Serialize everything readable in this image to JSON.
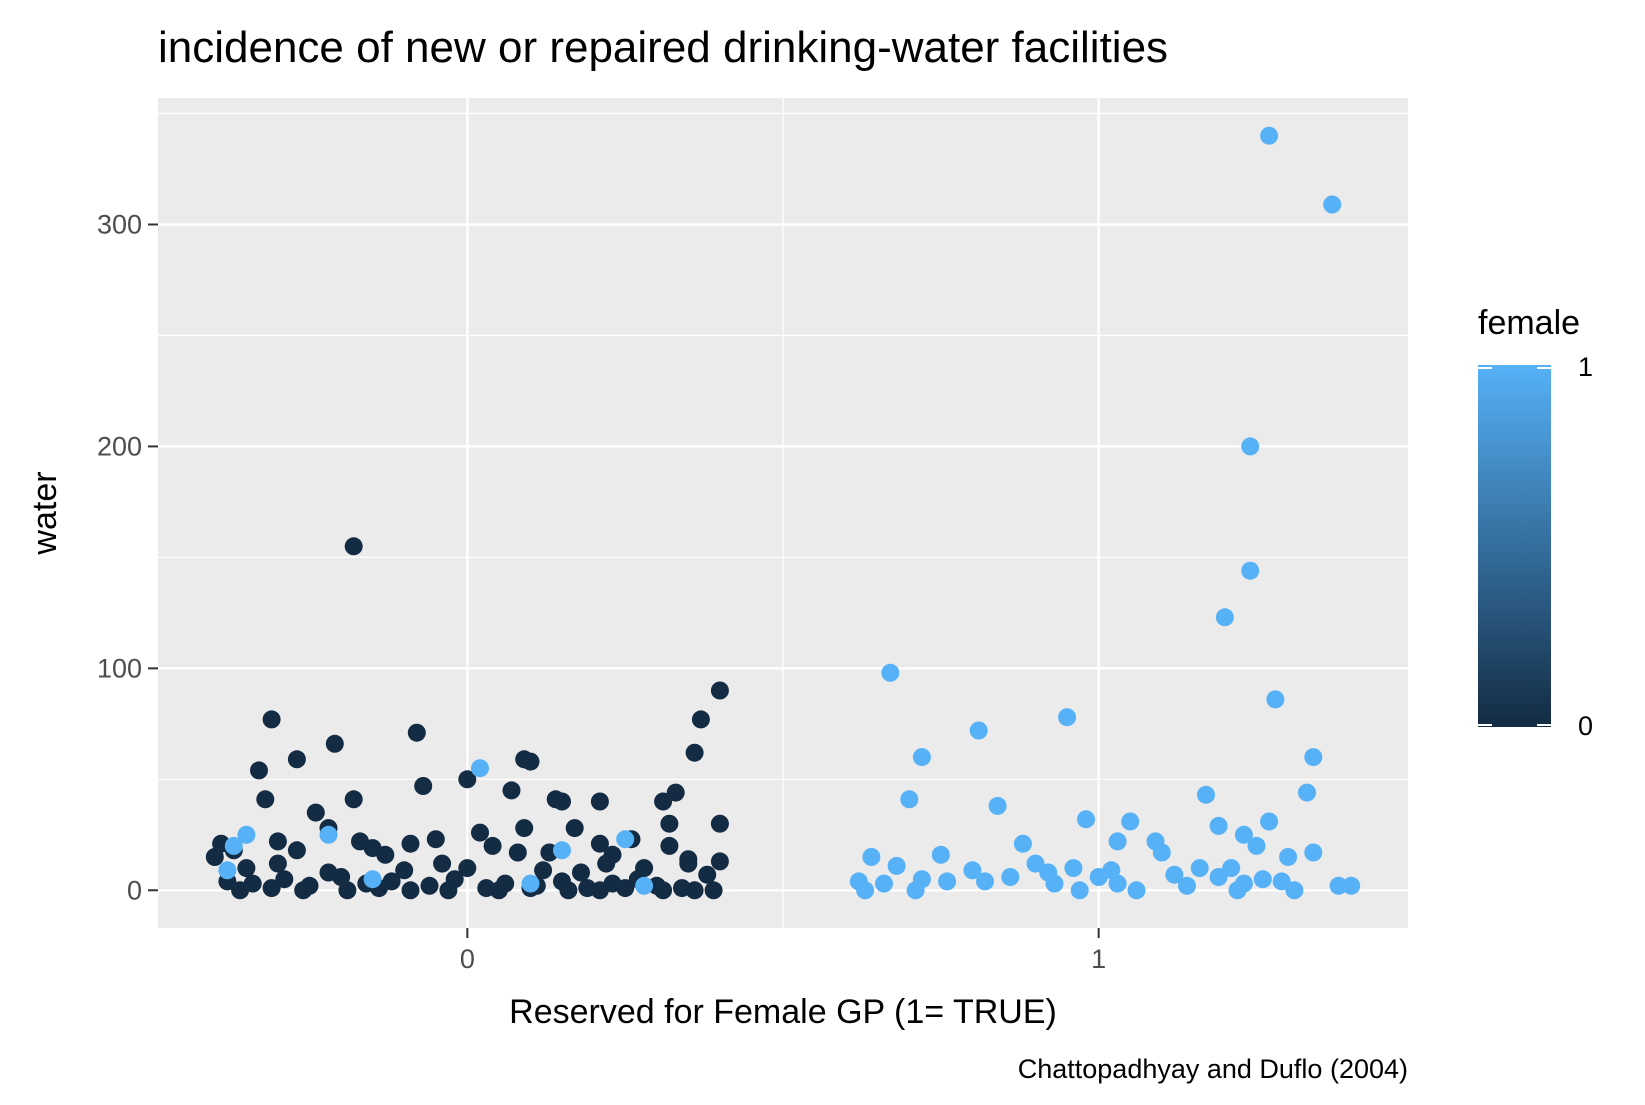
{
  "chart_data": {
    "type": "scatter",
    "title": "incidence of new or repaired drinking-water facilities",
    "xlabel": "Reserved for Female GP (1= TRUE)",
    "ylabel": "water",
    "caption": "Chattopadhyay and Duflo (2004)",
    "x_ticks": [
      "0",
      "1"
    ],
    "y_ticks": [
      "0",
      "100",
      "200",
      "300"
    ],
    "xlim": [
      -0.49,
      1.49
    ],
    "ylim": [
      -17,
      357
    ],
    "grid": true,
    "jitter_width": 0.4,
    "legend": {
      "title": "female",
      "labels": [
        "1",
        "0"
      ],
      "placement": "right",
      "color_low": "#132B43",
      "color_high": "#56B1F7"
    },
    "colors": {
      "panel": "#EBEBEB",
      "grid": "#FFFFFF",
      "female_0": "#132B43",
      "female_1": "#56B1F7"
    },
    "series": [
      {
        "group": 0,
        "points": [
          [
            -0.18,
            155
          ],
          [
            0.4,
            90
          ],
          [
            -0.31,
            77
          ],
          [
            0.37,
            77
          ],
          [
            -0.08,
            71
          ],
          [
            -0.21,
            66
          ],
          [
            0.36,
            62
          ],
          [
            -0.27,
            59
          ],
          [
            0.09,
            59
          ],
          [
            0.1,
            58
          ],
          [
            -0.33,
            54
          ],
          [
            0.0,
            50
          ],
          [
            -0.07,
            47
          ],
          [
            0.07,
            45
          ],
          [
            0.33,
            44
          ],
          [
            -0.18,
            41
          ],
          [
            -0.32,
            41
          ],
          [
            0.14,
            41
          ],
          [
            0.31,
            40
          ],
          [
            0.21,
            40
          ],
          [
            0.15,
            40
          ],
          [
            -0.24,
            35
          ],
          [
            0.4,
            30
          ],
          [
            -0.22,
            28
          ],
          [
            0.32,
            30
          ],
          [
            0.17,
            28
          ],
          [
            0.02,
            26
          ],
          [
            0.09,
            28
          ],
          [
            -0.3,
            22
          ],
          [
            -0.17,
            22
          ],
          [
            -0.39,
            21
          ],
          [
            -0.09,
            21
          ],
          [
            -0.05,
            23
          ],
          [
            0.21,
            21
          ],
          [
            0.26,
            23
          ],
          [
            0.32,
            20
          ],
          [
            -0.15,
            19
          ],
          [
            -0.37,
            18
          ],
          [
            -0.27,
            18
          ],
          [
            0.04,
            20
          ],
          [
            0.08,
            17
          ],
          [
            -0.4,
            15
          ],
          [
            -0.13,
            16
          ],
          [
            0.13,
            17
          ],
          [
            0.23,
            16
          ],
          [
            0.35,
            12
          ],
          [
            0.4,
            13
          ],
          [
            -0.35,
            10
          ],
          [
            -0.22,
            8
          ],
          [
            -0.1,
            9
          ],
          [
            0.0,
            10
          ],
          [
            0.12,
            9
          ],
          [
            0.18,
            8
          ],
          [
            0.28,
            10
          ],
          [
            0.38,
            7
          ],
          [
            -0.38,
            4
          ],
          [
            -0.34,
            3
          ],
          [
            -0.29,
            5
          ],
          [
            -0.25,
            2
          ],
          [
            -0.2,
            6
          ],
          [
            -0.16,
            3
          ],
          [
            -0.12,
            4
          ],
          [
            -0.06,
            2
          ],
          [
            -0.02,
            5
          ],
          [
            0.03,
            1
          ],
          [
            0.06,
            3
          ],
          [
            0.11,
            2
          ],
          [
            0.15,
            4
          ],
          [
            0.19,
            1
          ],
          [
            0.23,
            3
          ],
          [
            0.27,
            5
          ],
          [
            0.3,
            2
          ],
          [
            0.34,
            1
          ],
          [
            0.39,
            0
          ],
          [
            -0.36,
            0
          ],
          [
            -0.31,
            1
          ],
          [
            -0.26,
            0
          ],
          [
            -0.19,
            0
          ],
          [
            -0.14,
            1
          ],
          [
            -0.09,
            0
          ],
          [
            -0.03,
            0
          ],
          [
            0.05,
            0
          ],
          [
            0.1,
            1
          ],
          [
            0.16,
            0
          ],
          [
            0.21,
            0
          ],
          [
            0.25,
            1
          ],
          [
            0.31,
            0
          ],
          [
            0.36,
            0
          ],
          [
            -0.04,
            12
          ],
          [
            0.22,
            12
          ],
          [
            -0.3,
            12
          ],
          [
            0.35,
            14
          ]
        ]
      },
      {
        "group": 1,
        "points": [
          [
            1.27,
            340
          ],
          [
            1.37,
            309
          ],
          [
            1.24,
            200
          ],
          [
            1.24,
            144
          ],
          [
            1.2,
            123
          ],
          [
            0.67,
            98
          ],
          [
            1.28,
            86
          ],
          [
            0.95,
            78
          ],
          [
            0.81,
            72
          ],
          [
            0.72,
            60
          ],
          [
            1.34,
            60
          ],
          [
            0.02,
            55
          ],
          [
            1.33,
            44
          ],
          [
            1.17,
            43
          ],
          [
            0.7,
            41
          ],
          [
            0.84,
            38
          ],
          [
            0.98,
            32
          ],
          [
            1.05,
            31
          ],
          [
            1.27,
            31
          ],
          [
            1.19,
            29
          ],
          [
            1.23,
            25
          ],
          [
            0.25,
            23
          ],
          [
            -0.35,
            25
          ],
          [
            -0.22,
            25
          ],
          [
            1.03,
            22
          ],
          [
            1.09,
            22
          ],
          [
            1.25,
            20
          ],
          [
            0.88,
            21
          ],
          [
            1.1,
            17
          ],
          [
            1.34,
            17
          ],
          [
            0.15,
            18
          ],
          [
            -0.37,
            20
          ],
          [
            0.75,
            16
          ],
          [
            0.64,
            15
          ],
          [
            1.3,
            15
          ],
          [
            0.9,
            12
          ],
          [
            0.68,
            11
          ],
          [
            0.96,
            10
          ],
          [
            1.02,
            9
          ],
          [
            1.16,
            10
          ],
          [
            0.8,
            9
          ],
          [
            1.21,
            10
          ],
          [
            0.92,
            8
          ],
          [
            1.12,
            7
          ],
          [
            0.86,
            6
          ],
          [
            1.0,
            6
          ],
          [
            1.19,
            6
          ],
          [
            1.26,
            5
          ],
          [
            0.62,
            4
          ],
          [
            0.72,
            5
          ],
          [
            0.82,
            4
          ],
          [
            0.93,
            3
          ],
          [
            1.03,
            3
          ],
          [
            1.14,
            2
          ],
          [
            1.23,
            3
          ],
          [
            1.29,
            4
          ],
          [
            1.38,
            2
          ],
          [
            0.63,
            0
          ],
          [
            0.71,
            0
          ],
          [
            0.97,
            0
          ],
          [
            1.06,
            0
          ],
          [
            1.22,
            0
          ],
          [
            1.31,
            0
          ],
          [
            1.4,
            2
          ],
          [
            -0.15,
            5
          ],
          [
            0.1,
            3
          ],
          [
            0.28,
            2
          ],
          [
            -0.38,
            9
          ],
          [
            0.66,
            3
          ],
          [
            0.76,
            4
          ]
        ]
      }
    ]
  }
}
